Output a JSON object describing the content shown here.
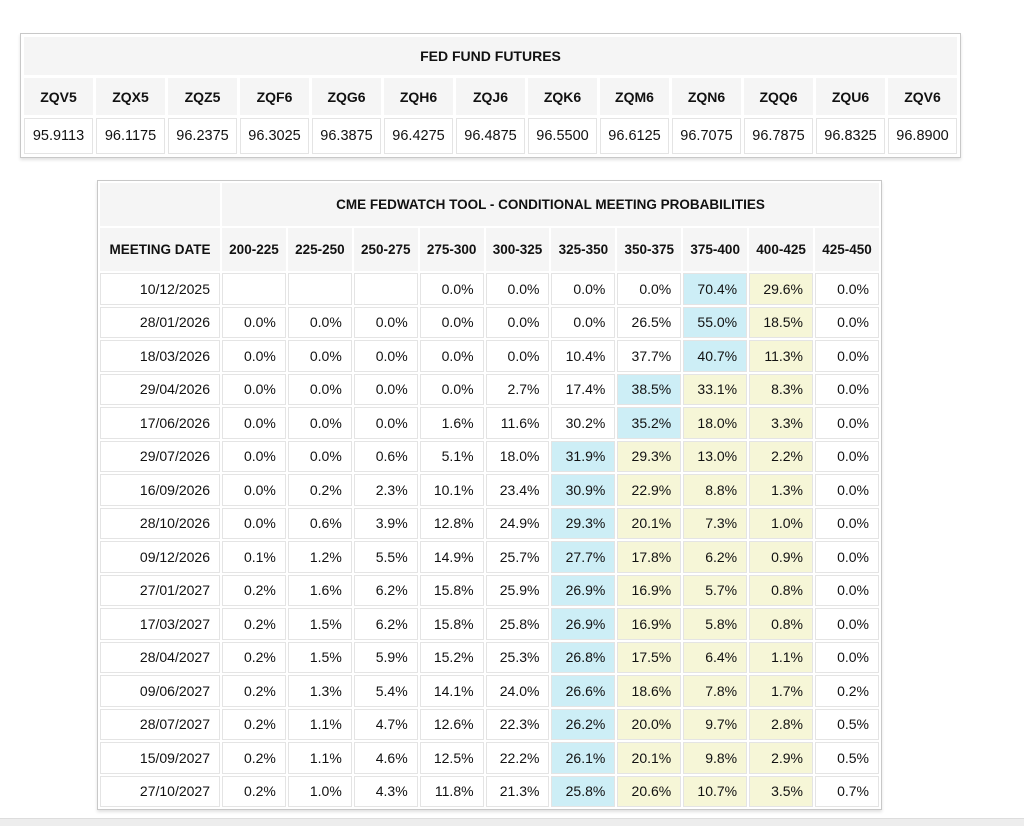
{
  "colors": {
    "header_bg": "#f5f5f5",
    "highlight_blue": "#cdeef6",
    "highlight_yellow": "#f6f6d7"
  },
  "futures_table": {
    "title": "FED FUND FUTURES",
    "contracts": [
      "ZQV5",
      "ZQX5",
      "ZQZ5",
      "ZQF6",
      "ZQG6",
      "ZQH6",
      "ZQJ6",
      "ZQK6",
      "ZQM6",
      "ZQN6",
      "ZQQ6",
      "ZQU6",
      "ZQV6"
    ],
    "prices": [
      "95.9113",
      "96.1175",
      "96.2375",
      "96.3025",
      "96.3875",
      "96.4275",
      "96.4875",
      "96.5500",
      "96.6125",
      "96.7075",
      "96.7875",
      "96.8325",
      "96.8900"
    ]
  },
  "fedwatch_table": {
    "title": "CME FEDWATCH TOOL - CONDITIONAL MEETING PROBABILITIES",
    "date_header": "MEETING DATE",
    "rate_headers": [
      "200-225",
      "225-250",
      "250-275",
      "275-300",
      "300-325",
      "325-350",
      "350-375",
      "375-400",
      "400-425",
      "425-450"
    ],
    "rows": [
      {
        "date": "10/12/2025",
        "values": [
          "",
          "",
          "",
          "0.0%",
          "0.0%",
          "0.0%",
          "0.0%",
          "70.4%",
          "29.6%",
          "0.0%"
        ],
        "highlights": [
          "",
          "",
          "",
          "",
          "",
          "",
          "",
          "blue",
          "yellow",
          ""
        ]
      },
      {
        "date": "28/01/2026",
        "values": [
          "0.0%",
          "0.0%",
          "0.0%",
          "0.0%",
          "0.0%",
          "0.0%",
          "26.5%",
          "55.0%",
          "18.5%",
          "0.0%"
        ],
        "highlights": [
          "",
          "",
          "",
          "",
          "",
          "",
          "",
          "blue",
          "yellow",
          ""
        ]
      },
      {
        "date": "18/03/2026",
        "values": [
          "0.0%",
          "0.0%",
          "0.0%",
          "0.0%",
          "0.0%",
          "10.4%",
          "37.7%",
          "40.7%",
          "11.3%",
          "0.0%"
        ],
        "highlights": [
          "",
          "",
          "",
          "",
          "",
          "",
          "",
          "blue",
          "yellow",
          ""
        ]
      },
      {
        "date": "29/04/2026",
        "values": [
          "0.0%",
          "0.0%",
          "0.0%",
          "0.0%",
          "2.7%",
          "17.4%",
          "38.5%",
          "33.1%",
          "8.3%",
          "0.0%"
        ],
        "highlights": [
          "",
          "",
          "",
          "",
          "",
          "",
          "blue",
          "yellow",
          "yellow",
          ""
        ]
      },
      {
        "date": "17/06/2026",
        "values": [
          "0.0%",
          "0.0%",
          "0.0%",
          "1.6%",
          "11.6%",
          "30.2%",
          "35.2%",
          "18.0%",
          "3.3%",
          "0.0%"
        ],
        "highlights": [
          "",
          "",
          "",
          "",
          "",
          "",
          "blue",
          "yellow",
          "yellow",
          ""
        ]
      },
      {
        "date": "29/07/2026",
        "values": [
          "0.0%",
          "0.0%",
          "0.6%",
          "5.1%",
          "18.0%",
          "31.9%",
          "29.3%",
          "13.0%",
          "2.2%",
          "0.0%"
        ],
        "highlights": [
          "",
          "",
          "",
          "",
          "",
          "blue",
          "yellow",
          "yellow",
          "yellow",
          ""
        ]
      },
      {
        "date": "16/09/2026",
        "values": [
          "0.0%",
          "0.2%",
          "2.3%",
          "10.1%",
          "23.4%",
          "30.9%",
          "22.9%",
          "8.8%",
          "1.3%",
          "0.0%"
        ],
        "highlights": [
          "",
          "",
          "",
          "",
          "",
          "blue",
          "yellow",
          "yellow",
          "yellow",
          ""
        ]
      },
      {
        "date": "28/10/2026",
        "values": [
          "0.0%",
          "0.6%",
          "3.9%",
          "12.8%",
          "24.9%",
          "29.3%",
          "20.1%",
          "7.3%",
          "1.0%",
          "0.0%"
        ],
        "highlights": [
          "",
          "",
          "",
          "",
          "",
          "blue",
          "yellow",
          "yellow",
          "yellow",
          ""
        ]
      },
      {
        "date": "09/12/2026",
        "values": [
          "0.1%",
          "1.2%",
          "5.5%",
          "14.9%",
          "25.7%",
          "27.7%",
          "17.8%",
          "6.2%",
          "0.9%",
          "0.0%"
        ],
        "highlights": [
          "",
          "",
          "",
          "",
          "",
          "blue",
          "yellow",
          "yellow",
          "yellow",
          ""
        ]
      },
      {
        "date": "27/01/2027",
        "values": [
          "0.2%",
          "1.6%",
          "6.2%",
          "15.8%",
          "25.9%",
          "26.9%",
          "16.9%",
          "5.7%",
          "0.8%",
          "0.0%"
        ],
        "highlights": [
          "",
          "",
          "",
          "",
          "",
          "blue",
          "yellow",
          "yellow",
          "yellow",
          ""
        ]
      },
      {
        "date": "17/03/2027",
        "values": [
          "0.2%",
          "1.5%",
          "6.2%",
          "15.8%",
          "25.8%",
          "26.9%",
          "16.9%",
          "5.8%",
          "0.8%",
          "0.0%"
        ],
        "highlights": [
          "",
          "",
          "",
          "",
          "",
          "blue",
          "yellow",
          "yellow",
          "yellow",
          ""
        ]
      },
      {
        "date": "28/04/2027",
        "values": [
          "0.2%",
          "1.5%",
          "5.9%",
          "15.2%",
          "25.3%",
          "26.8%",
          "17.5%",
          "6.4%",
          "1.1%",
          "0.0%"
        ],
        "highlights": [
          "",
          "",
          "",
          "",
          "",
          "blue",
          "yellow",
          "yellow",
          "yellow",
          ""
        ]
      },
      {
        "date": "09/06/2027",
        "values": [
          "0.2%",
          "1.3%",
          "5.4%",
          "14.1%",
          "24.0%",
          "26.6%",
          "18.6%",
          "7.8%",
          "1.7%",
          "0.2%"
        ],
        "highlights": [
          "",
          "",
          "",
          "",
          "",
          "blue",
          "yellow",
          "yellow",
          "yellow",
          ""
        ]
      },
      {
        "date": "28/07/2027",
        "values": [
          "0.2%",
          "1.1%",
          "4.7%",
          "12.6%",
          "22.3%",
          "26.2%",
          "20.0%",
          "9.7%",
          "2.8%",
          "0.5%"
        ],
        "highlights": [
          "",
          "",
          "",
          "",
          "",
          "blue",
          "yellow",
          "yellow",
          "yellow",
          ""
        ]
      },
      {
        "date": "15/09/2027",
        "values": [
          "0.2%",
          "1.1%",
          "4.6%",
          "12.5%",
          "22.2%",
          "26.1%",
          "20.1%",
          "9.8%",
          "2.9%",
          "0.5%"
        ],
        "highlights": [
          "",
          "",
          "",
          "",
          "",
          "blue",
          "yellow",
          "yellow",
          "yellow",
          ""
        ]
      },
      {
        "date": "27/10/2027",
        "values": [
          "0.2%",
          "1.0%",
          "4.3%",
          "11.8%",
          "21.3%",
          "25.8%",
          "20.6%",
          "10.7%",
          "3.5%",
          "0.7%"
        ],
        "highlights": [
          "",
          "",
          "",
          "",
          "",
          "blue",
          "yellow",
          "yellow",
          "yellow",
          ""
        ]
      }
    ]
  }
}
